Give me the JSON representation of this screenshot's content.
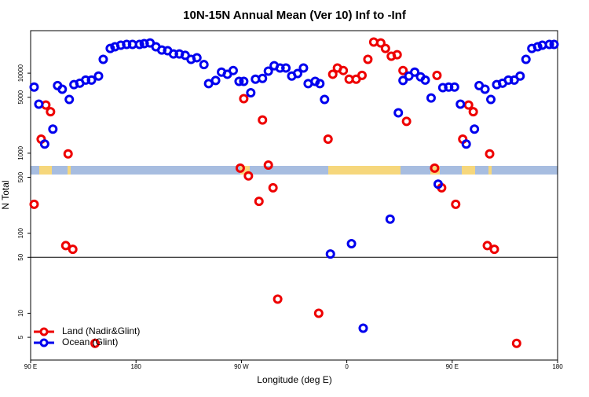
{
  "chart_data": {
    "type": "scatter",
    "title": "10N-15N Annual Mean (Ver 10)   Inf to -Inf",
    "xlabel": "Longitude (deg E)",
    "ylabel": "N Total",
    "xlim": [
      90,
      540
    ],
    "xticks": [
      {
        "value": 90,
        "label": "90 E"
      },
      {
        "value": 180,
        "label": "180"
      },
      {
        "value": 270,
        "label": "90 W"
      },
      {
        "value": 360,
        "label": "0"
      },
      {
        "value": 450,
        "label": "90 E"
      },
      {
        "value": 540,
        "label": "180"
      }
    ],
    "ylim": [
      2.6,
      34000
    ],
    "ylog": true,
    "yticks": [
      5,
      10,
      50,
      100,
      500,
      1000,
      5000,
      10000
    ],
    "reference_line": 50,
    "legend": "lower left",
    "series": [
      {
        "name": "Land (Nadir&Glint)",
        "color": "#ee0000",
        "x": [
          93,
          99,
          103,
          107,
          120,
          122,
          126,
          145,
          269,
          272,
          276,
          285,
          288,
          293,
          297,
          301,
          336,
          344,
          348,
          352,
          357,
          362,
          368,
          373,
          378,
          383,
          389,
          393,
          398,
          403,
          408,
          411,
          435,
          437,
          441,
          453,
          459,
          464,
          468,
          480,
          482,
          486,
          505
        ],
        "values": [
          230,
          1500,
          4000,
          3300,
          70,
          980,
          63,
          4.2,
          650,
          4800,
          520,
          250,
          2600,
          710,
          370,
          15,
          10,
          1500,
          9700,
          11600,
          10800,
          8400,
          8400,
          9400,
          14900,
          24500,
          23900,
          20400,
          16300,
          17000,
          10800,
          2500,
          650,
          9400,
          370,
          230,
          1500,
          4000,
          3300,
          70,
          980,
          63,
          4.2
        ]
      },
      {
        "name": "Ocean (Glint)",
        "color": "#0000ee",
        "x": [
          93,
          97,
          102,
          109,
          113,
          117,
          123,
          127,
          132,
          137,
          142,
          148,
          152,
          158,
          162,
          167,
          172,
          177,
          183,
          187,
          192,
          197,
          202,
          207,
          212,
          217,
          222,
          227,
          232,
          238,
          242,
          248,
          253,
          258,
          263,
          268,
          272,
          278,
          282,
          288,
          293,
          298,
          303,
          308,
          313,
          318,
          323,
          327,
          333,
          337,
          341,
          346,
          364,
          374,
          397,
          404,
          408,
          413,
          418,
          423,
          427,
          432,
          438,
          442,
          447,
          452,
          457,
          462,
          469,
          473,
          478,
          483,
          488,
          493,
          498,
          503,
          508,
          513,
          518,
          523,
          527,
          533,
          537
        ],
        "values": [
          6700,
          4100,
          1300,
          2000,
          7000,
          6300,
          4700,
          7200,
          7500,
          8200,
          8200,
          9200,
          14900,
          20400,
          21400,
          22400,
          22900,
          22900,
          22900,
          23400,
          23900,
          21400,
          19500,
          19100,
          17400,
          17400,
          16700,
          14900,
          15600,
          12800,
          7400,
          8100,
          10300,
          9700,
          10800,
          7900,
          7900,
          5700,
          8400,
          8600,
          10600,
          12400,
          11600,
          11600,
          9200,
          9900,
          11600,
          7400,
          7900,
          7400,
          4700,
          55,
          74,
          6.5,
          150,
          3200,
          8100,
          9200,
          10300,
          9000,
          8200,
          4900,
          410,
          6600,
          6700,
          6700,
          4100,
          1300,
          2000,
          7000,
          6300,
          4700,
          7200,
          7500,
          8200,
          8200,
          9200,
          14900,
          20400,
          21400,
          22400,
          22900,
          22900
        ]
      }
    ]
  }
}
